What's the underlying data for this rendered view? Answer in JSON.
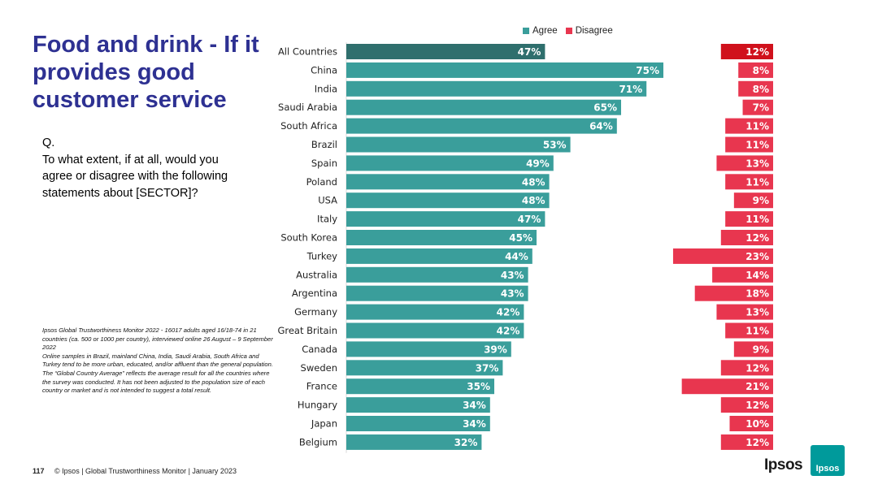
{
  "title": "Food and drink - If it provides good customer service",
  "question": {
    "prefix": "Q.",
    "text": "To what extent, if at all, would you agree or disagree with the following statements about [SECTOR]?"
  },
  "notes": [
    "Ipsos Global Trustworthiness Monitor 2022 - 16017 adults aged 16/18-74 in 21 countries (ca. 500 or 1000 per country), interviewed online 26 August – 9 September 2022",
    "Online samples in Brazil, mainland China, India, Saudi Arabia, South Africa and Turkey tend to be more urban, educated, and/or affluent than the general population.",
    "The “Global Country Average” reflects the average result for all the countries where the survey was conducted. It has not been adjusted to the population size of each country or market and is not intended to suggest a total result."
  ],
  "footer": {
    "page_number": "117",
    "text": "© Ipsos | Global Trustworthiness Monitor | January 2023"
  },
  "logo": {
    "word": "Ipsos",
    "badge": "Ipsos"
  },
  "colors": {
    "agree": "#3a9e9b",
    "agree_highlight": "#2f6f6d",
    "disagree": "#e8364f",
    "disagree_highlight": "#d0111c",
    "title": "#2e3192"
  },
  "chart_data": {
    "type": "bar",
    "orientation": "horizontal",
    "categories": [
      "All Countries",
      "China",
      "India",
      "Saudi Arabia",
      "South Africa",
      "Brazil",
      "Spain",
      "Poland",
      "USA",
      "Italy",
      "South Korea",
      "Turkey",
      "Australia",
      "Argentina",
      "Germany",
      "Great Britain",
      "Canada",
      "Sweden",
      "France",
      "Hungary",
      "Japan",
      "Belgium"
    ],
    "series": [
      {
        "name": "Agree",
        "values": [
          47,
          75,
          71,
          65,
          64,
          53,
          49,
          48,
          48,
          47,
          45,
          44,
          43,
          43,
          42,
          42,
          39,
          37,
          35,
          34,
          34,
          32
        ]
      },
      {
        "name": "Disagree",
        "values": [
          12,
          8,
          8,
          7,
          11,
          11,
          13,
          11,
          9,
          11,
          12,
          23,
          14,
          18,
          13,
          11,
          9,
          12,
          21,
          12,
          10,
          12
        ]
      }
    ],
    "value_suffix": "%",
    "highlight_category": "All Countries",
    "legend_position": "top"
  }
}
